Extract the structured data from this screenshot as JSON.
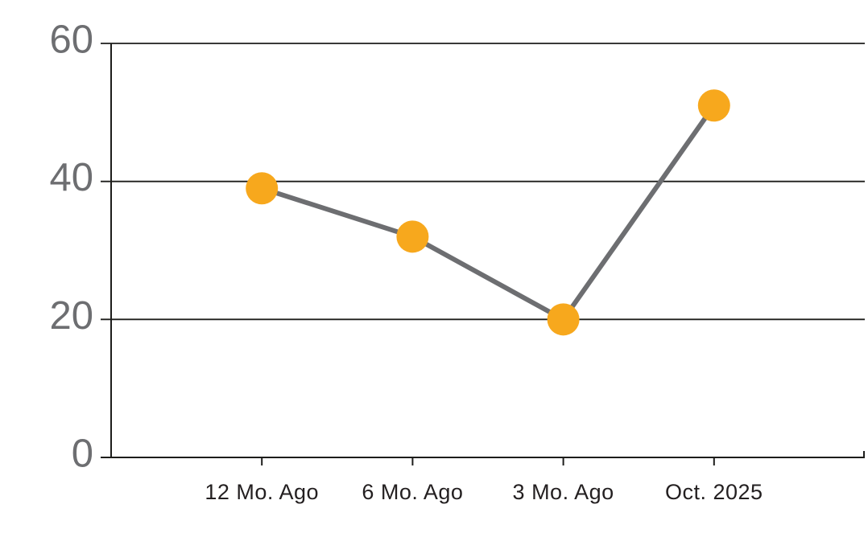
{
  "chart_data": {
    "type": "line",
    "title": "",
    "xlabel": "",
    "ylabel": "",
    "categories": [
      "12 Mo. Ago",
      "6 Mo. Ago",
      "3 Mo. Ago",
      "Oct. 2025"
    ],
    "values": [
      39,
      32,
      20,
      51
    ],
    "yticks": [
      0,
      20,
      40,
      60
    ],
    "ylim": [
      0,
      60
    ],
    "grid": true,
    "legend": false,
    "marker": "circle",
    "colors": {
      "point": "#F7A81D",
      "line": "#6d6e71",
      "axis": "#1d1d1b",
      "ytick_label": "#6d6e71",
      "xtick_label": "#231f20",
      "background": "#ffffff"
    }
  }
}
